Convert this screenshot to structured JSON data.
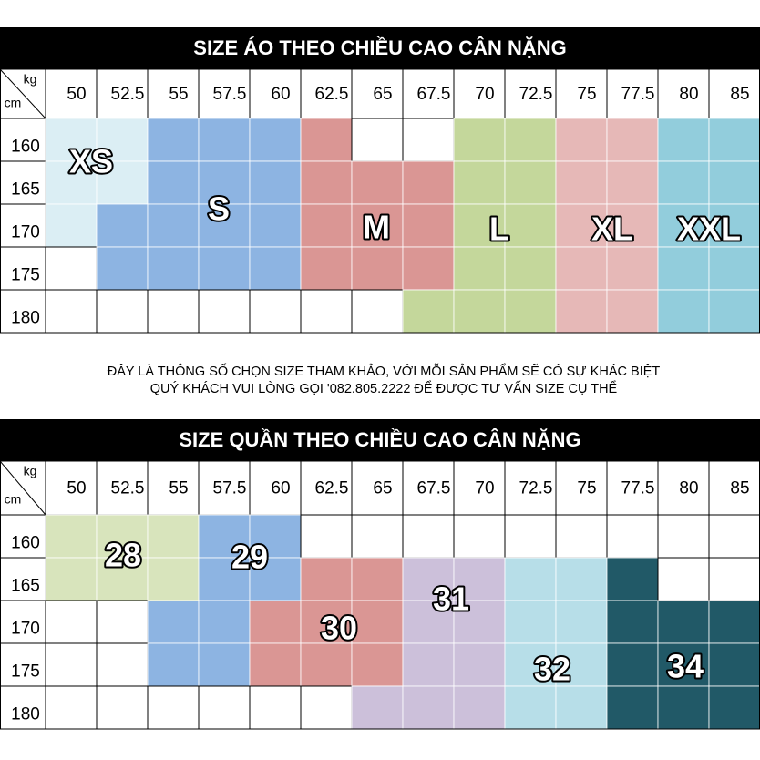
{
  "tables": [
    {
      "title": "SIZE ÁO THEO CHIỀU CAO CÂN NẶNG",
      "corner": {
        "weight_unit": "kg",
        "height_unit": "cm"
      },
      "weights": [
        50,
        52.5,
        55,
        57.5,
        60,
        62.5,
        65,
        67.5,
        70,
        72.5,
        75,
        77.5,
        80,
        85
      ],
      "heights": [
        160,
        165,
        170,
        175,
        180
      ],
      "sizes": [
        {
          "label": "XS",
          "color": "#dbeef4"
        },
        {
          "label": "S",
          "color": "#8db4e2"
        },
        {
          "label": "M",
          "color": "#da9694"
        },
        {
          "label": "L",
          "color": "#c4d79b"
        },
        {
          "label": "XL",
          "color": "#e6b8b7"
        },
        {
          "label": "XXL",
          "color": "#92cddc"
        }
      ],
      "grid": [
        [
          0,
          0,
          1,
          1,
          1,
          2,
          null,
          null,
          3,
          3,
          4,
          4,
          5,
          5
        ],
        [
          0,
          0,
          1,
          1,
          1,
          2,
          2,
          2,
          3,
          3,
          4,
          4,
          5,
          5
        ],
        [
          0,
          1,
          1,
          1,
          1,
          2,
          2,
          2,
          3,
          3,
          4,
          4,
          5,
          5
        ],
        [
          null,
          1,
          1,
          1,
          1,
          2,
          2,
          2,
          3,
          3,
          4,
          4,
          5,
          5
        ],
        [
          null,
          null,
          null,
          null,
          null,
          null,
          null,
          3,
          3,
          3,
          4,
          4,
          5,
          5
        ]
      ]
    },
    {
      "title": "SIZE QUẦN THEO CHIỀU CAO CÂN NẶNG",
      "corner": {
        "weight_unit": "kg",
        "height_unit": "cm"
      },
      "weights": [
        50,
        52.5,
        55,
        57.5,
        60,
        62.5,
        65,
        67.5,
        70,
        72.5,
        75,
        77.5,
        80,
        85
      ],
      "heights": [
        160,
        165,
        170,
        175,
        180
      ],
      "sizes": [
        {
          "label": "28",
          "color": "#d8e4bc"
        },
        {
          "label": "29",
          "color": "#8db4e2"
        },
        {
          "label": "30",
          "color": "#da9694"
        },
        {
          "label": "31",
          "color": "#ccc0da"
        },
        {
          "label": "32",
          "color": "#b7dee8"
        },
        {
          "label": "34",
          "color": "#215967"
        }
      ],
      "grid": [
        [
          0,
          0,
          0,
          1,
          1,
          null,
          null,
          null,
          null,
          null,
          null,
          null,
          null,
          null
        ],
        [
          0,
          0,
          0,
          1,
          1,
          2,
          2,
          3,
          3,
          4,
          4,
          5,
          null,
          null
        ],
        [
          null,
          null,
          1,
          1,
          2,
          2,
          2,
          3,
          3,
          4,
          4,
          5,
          5,
          5
        ],
        [
          null,
          null,
          1,
          1,
          2,
          2,
          2,
          3,
          3,
          4,
          4,
          5,
          5,
          5
        ],
        [
          null,
          null,
          null,
          null,
          null,
          null,
          3,
          3,
          3,
          4,
          4,
          5,
          5,
          5
        ]
      ]
    }
  ],
  "note": {
    "line1": "ĐÂY LÀ THÔNG SỐ CHỌN SIZE THAM KHẢO, VỚI MỖI SẢN PHẨM SẼ CÓ SỰ KHÁC BIỆT",
    "line2": "QUÝ KHÁCH VUI LÒNG GỌI  '082.805.2222   ĐỂ ĐƯỢC TƯ VẤN SIZE CỤ THỂ"
  }
}
